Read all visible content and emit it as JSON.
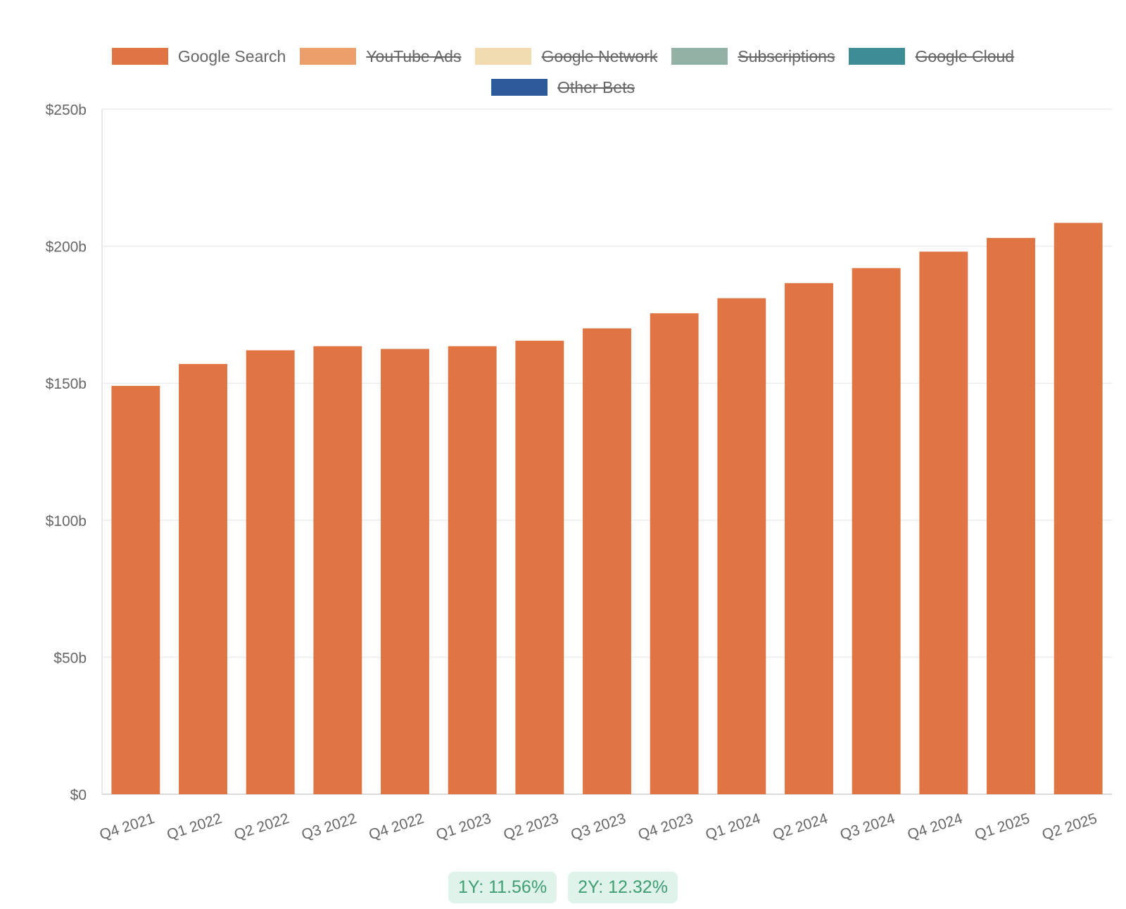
{
  "chart_data": {
    "type": "bar",
    "title": "",
    "xlabel": "",
    "ylabel": "",
    "ylim": [
      0,
      250
    ],
    "y_ticks": [
      {
        "value": 0,
        "label": "$0"
      },
      {
        "value": 50,
        "label": "$50b"
      },
      {
        "value": 100,
        "label": "$100b"
      },
      {
        "value": 150,
        "label": "$150b"
      },
      {
        "value": 200,
        "label": "$200b"
      },
      {
        "value": 250,
        "label": "$250b"
      }
    ],
    "categories": [
      "Q4 2021",
      "Q1 2022",
      "Q2 2022",
      "Q3 2022",
      "Q4 2022",
      "Q1 2023",
      "Q2 2023",
      "Q3 2023",
      "Q4 2023",
      "Q1 2024",
      "Q2 2024",
      "Q3 2024",
      "Q4 2024",
      "Q1 2025",
      "Q2 2025"
    ],
    "series": [
      {
        "name": "Google Search",
        "color": "#e07442",
        "values": [
          149,
          157,
          162,
          163.5,
          162.5,
          163.5,
          165.5,
          170,
          175.5,
          181,
          186.5,
          192,
          198,
          203,
          208.5
        ]
      }
    ],
    "legend": {
      "placement": "top-center",
      "items": [
        {
          "label": "Google Search",
          "color": "#e07442",
          "hidden": false
        },
        {
          "label": "YouTube Ads",
          "color": "#eba06c",
          "hidden": true
        },
        {
          "label": "Google Network",
          "color": "#f1dbb0",
          "hidden": true
        },
        {
          "label": "Subscriptions",
          "color": "#93b1a4",
          "hidden": true
        },
        {
          "label": "Google Cloud",
          "color": "#3f8d94",
          "hidden": true
        },
        {
          "label": "Other Bets",
          "color": "#2d5a9a",
          "hidden": true
        }
      ]
    },
    "grid": true,
    "growth": {
      "one_year": "1Y: 11.56%",
      "two_year": "2Y: 12.32%"
    }
  }
}
